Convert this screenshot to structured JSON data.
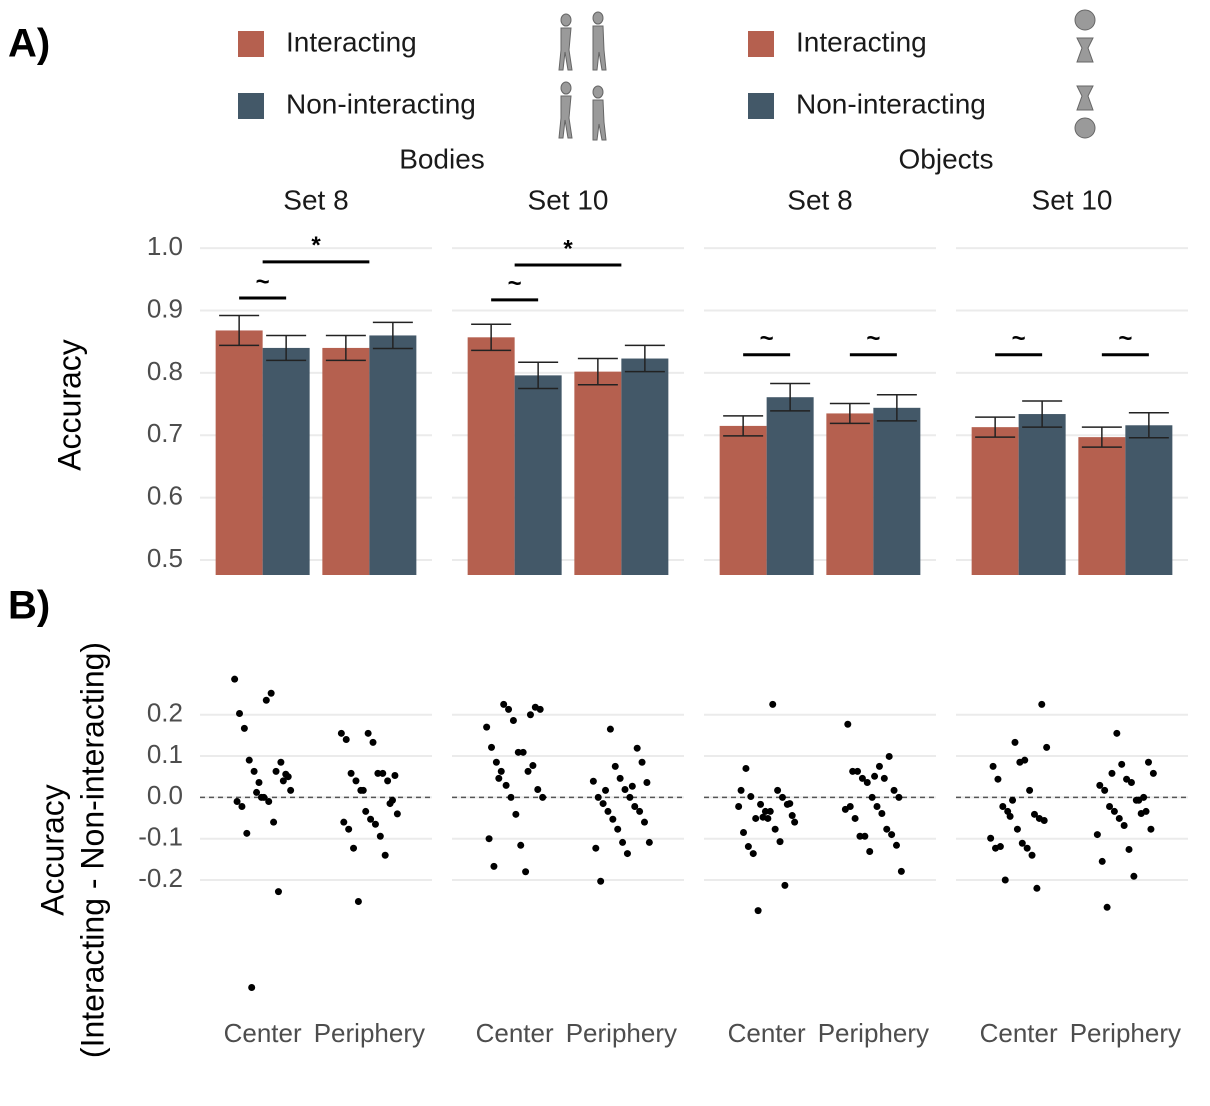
{
  "chart_data": [
    {
      "type": "bar",
      "title": "A)",
      "y_label": "Accuracy",
      "ylim": [
        0.476,
        1.013
      ],
      "yticks": [
        0.5,
        0.6,
        0.7,
        0.8,
        0.9,
        {
          "value": 1,
          "label": "1.0"
        }
      ],
      "grid": true,
      "categories": [
        null,
        null
      ],
      "facet_groups": [
        {
          "label": "Bodies",
          "facets": [
            {
              "label": "Set 8",
              "series": [
                {
                  "name": "Interacting",
                  "color": "#b5604f",
                  "values": [
                    0.868,
                    0.84
                  ],
                  "errors": [
                    0.024,
                    0.02
                  ]
                },
                {
                  "name": "Non-interacting",
                  "color": "#435868",
                  "values": [
                    0.84,
                    0.86
                  ],
                  "errors": [
                    0.02,
                    0.021
                  ]
                }
              ],
              "annotations": [
                {
                  "label": "~",
                  "y": 0.92,
                  "between": [
                    "Center"
                  ]
                },
                {
                  "label": "*",
                  "y": 0.978,
                  "between": [
                    "Center",
                    "Periphery"
                  ]
                }
              ]
            },
            {
              "label": "Set 10",
              "series": [
                {
                  "name": "Interacting",
                  "color": "#b5604f",
                  "values": [
                    0.857,
                    0.802
                  ],
                  "errors": [
                    0.021,
                    0.021
                  ]
                },
                {
                  "name": "Non-interacting",
                  "color": "#435868",
                  "values": [
                    0.796,
                    0.823
                  ],
                  "errors": [
                    0.021,
                    0.021
                  ]
                }
              ],
              "annotations": [
                {
                  "label": "~",
                  "y": 0.917,
                  "between": [
                    "Center"
                  ]
                },
                {
                  "label": "*",
                  "y": 0.973,
                  "between": [
                    "Center",
                    "Periphery"
                  ]
                }
              ]
            }
          ]
        },
        {
          "label": "Objects",
          "facets": [
            {
              "label": "Set 8",
              "series": [
                {
                  "name": "Interacting",
                  "color": "#b5604f",
                  "values": [
                    0.715,
                    0.735
                  ],
                  "errors": [
                    0.016,
                    0.016
                  ]
                },
                {
                  "name": "Non-interacting",
                  "color": "#435868",
                  "values": [
                    0.761,
                    0.744
                  ],
                  "errors": [
                    0.022,
                    0.021
                  ]
                }
              ],
              "annotations": [
                {
                  "label": "~",
                  "y": 0.829,
                  "between": [
                    "Center"
                  ]
                },
                {
                  "label": "~",
                  "y": 0.829,
                  "between": [
                    "Periphery"
                  ]
                }
              ]
            },
            {
              "label": "Set 10",
              "series": [
                {
                  "name": "Interacting",
                  "color": "#b5604f",
                  "values": [
                    0.713,
                    0.697
                  ],
                  "errors": [
                    0.016,
                    0.016
                  ]
                },
                {
                  "name": "Non-interacting",
                  "color": "#435868",
                  "values": [
                    0.734,
                    0.716
                  ],
                  "errors": [
                    0.021,
                    0.02
                  ]
                }
              ],
              "annotations": [
                {
                  "label": "~",
                  "y": 0.829,
                  "between": [
                    "Center"
                  ]
                },
                {
                  "label": "~",
                  "y": 0.829,
                  "between": [
                    "Periphery"
                  ]
                }
              ]
            }
          ]
        }
      ]
    },
    {
      "type": "strip",
      "title": "B)",
      "y_label": [
        "Accuracy",
        "(Interacting - Non-interacting)"
      ],
      "ylim": [
        -0.5,
        0.33
      ],
      "yticks": [
        -0.2,
        -0.1,
        {
          "value": 0,
          "label": "0.0"
        },
        0.1,
        0.2
      ],
      "grid": true,
      "hline": 0,
      "color": "#000000",
      "categories": [
        "Center",
        "Periphery"
      ],
      "facets": [
        {
          "values": [
            [
              0.286,
              0.235,
              0.203,
              0.252,
              0.167,
              0.063,
              0.09,
              0.085,
              0.063,
              0.056,
              0.036,
              0.017,
              0,
              -0.01,
              -0.01,
              -0.022,
              -0.06,
              -0.087,
              -0.228,
              -0.46,
              0.04,
              0.012,
              0.05,
              0
            ],
            [
              0.155,
              0.155,
              0.133,
              0.14,
              0.058,
              0.058,
              0.058,
              0.04,
              0.04,
              0.017,
              -0.007,
              -0.034,
              -0.04,
              -0.053,
              -0.06,
              -0.065,
              -0.077,
              -0.094,
              -0.123,
              -0.14,
              -0.252,
              -0.015,
              0.017,
              0.053
            ]
          ]
        },
        {
          "values": [
            [
              0.225,
              0.218,
              0.213,
              0.213,
              0.186,
              0.17,
              0.109,
              0.121,
              0.109,
              0.085,
              0.063,
              0.063,
              0.077,
              0.029,
              0.019,
              0,
              0,
              -0.041,
              -0.1,
              -0.116,
              -0.167,
              -0.18,
              0.046,
              0.2
            ],
            [
              0.119,
              0.165,
              0.085,
              0.075,
              0.036,
              0.046,
              0.039,
              0.019,
              0,
              0,
              -0.015,
              -0.022,
              -0.034,
              -0.034,
              -0.053,
              -0.06,
              -0.077,
              -0.109,
              -0.109,
              -0.123,
              -0.136,
              -0.203,
              0.027,
              0.017
            ]
          ]
        },
        {
          "values": [
            [
              0.225,
              0.07,
              0.017,
              0.002,
              0,
              -0.051,
              -0.017,
              -0.017,
              -0.044,
              -0.034,
              -0.022,
              -0.034,
              -0.085,
              -0.077,
              -0.119,
              -0.107,
              -0.136,
              -0.213,
              -0.274,
              -0.015,
              -0.048,
              -0.06,
              -0.051,
              0.017
            ],
            [
              0.177,
              0.075,
              0.063,
              0.046,
              0.063,
              0.099,
              0.046,
              0.017,
              0.036,
              0,
              0,
              -0.029,
              -0.022,
              -0.022,
              -0.039,
              -0.051,
              -0.077,
              -0.094,
              -0.09,
              -0.094,
              -0.116,
              -0.131,
              -0.179,
              0.051
            ]
          ]
        },
        {
          "values": [
            [
              0.225,
              0.133,
              0.121,
              0.085,
              0.075,
              0.09,
              0.044,
              0.017,
              -0.022,
              -0.041,
              -0.034,
              -0.051,
              -0.007,
              -0.056,
              -0.077,
              -0.099,
              -0.111,
              -0.123,
              -0.123,
              -0.119,
              -0.14,
              -0.2,
              -0.22,
              -0.046
            ],
            [
              0.155,
              0.085,
              0.08,
              0.058,
              0.044,
              0.029,
              0.036,
              0.017,
              -0.007,
              -0.022,
              -0.039,
              -0.034,
              -0.034,
              -0.051,
              -0.077,
              -0.068,
              -0.09,
              -0.126,
              -0.155,
              -0.191,
              -0.266,
              -0.007,
              0.058,
              0
            ]
          ]
        }
      ]
    }
  ]
}
